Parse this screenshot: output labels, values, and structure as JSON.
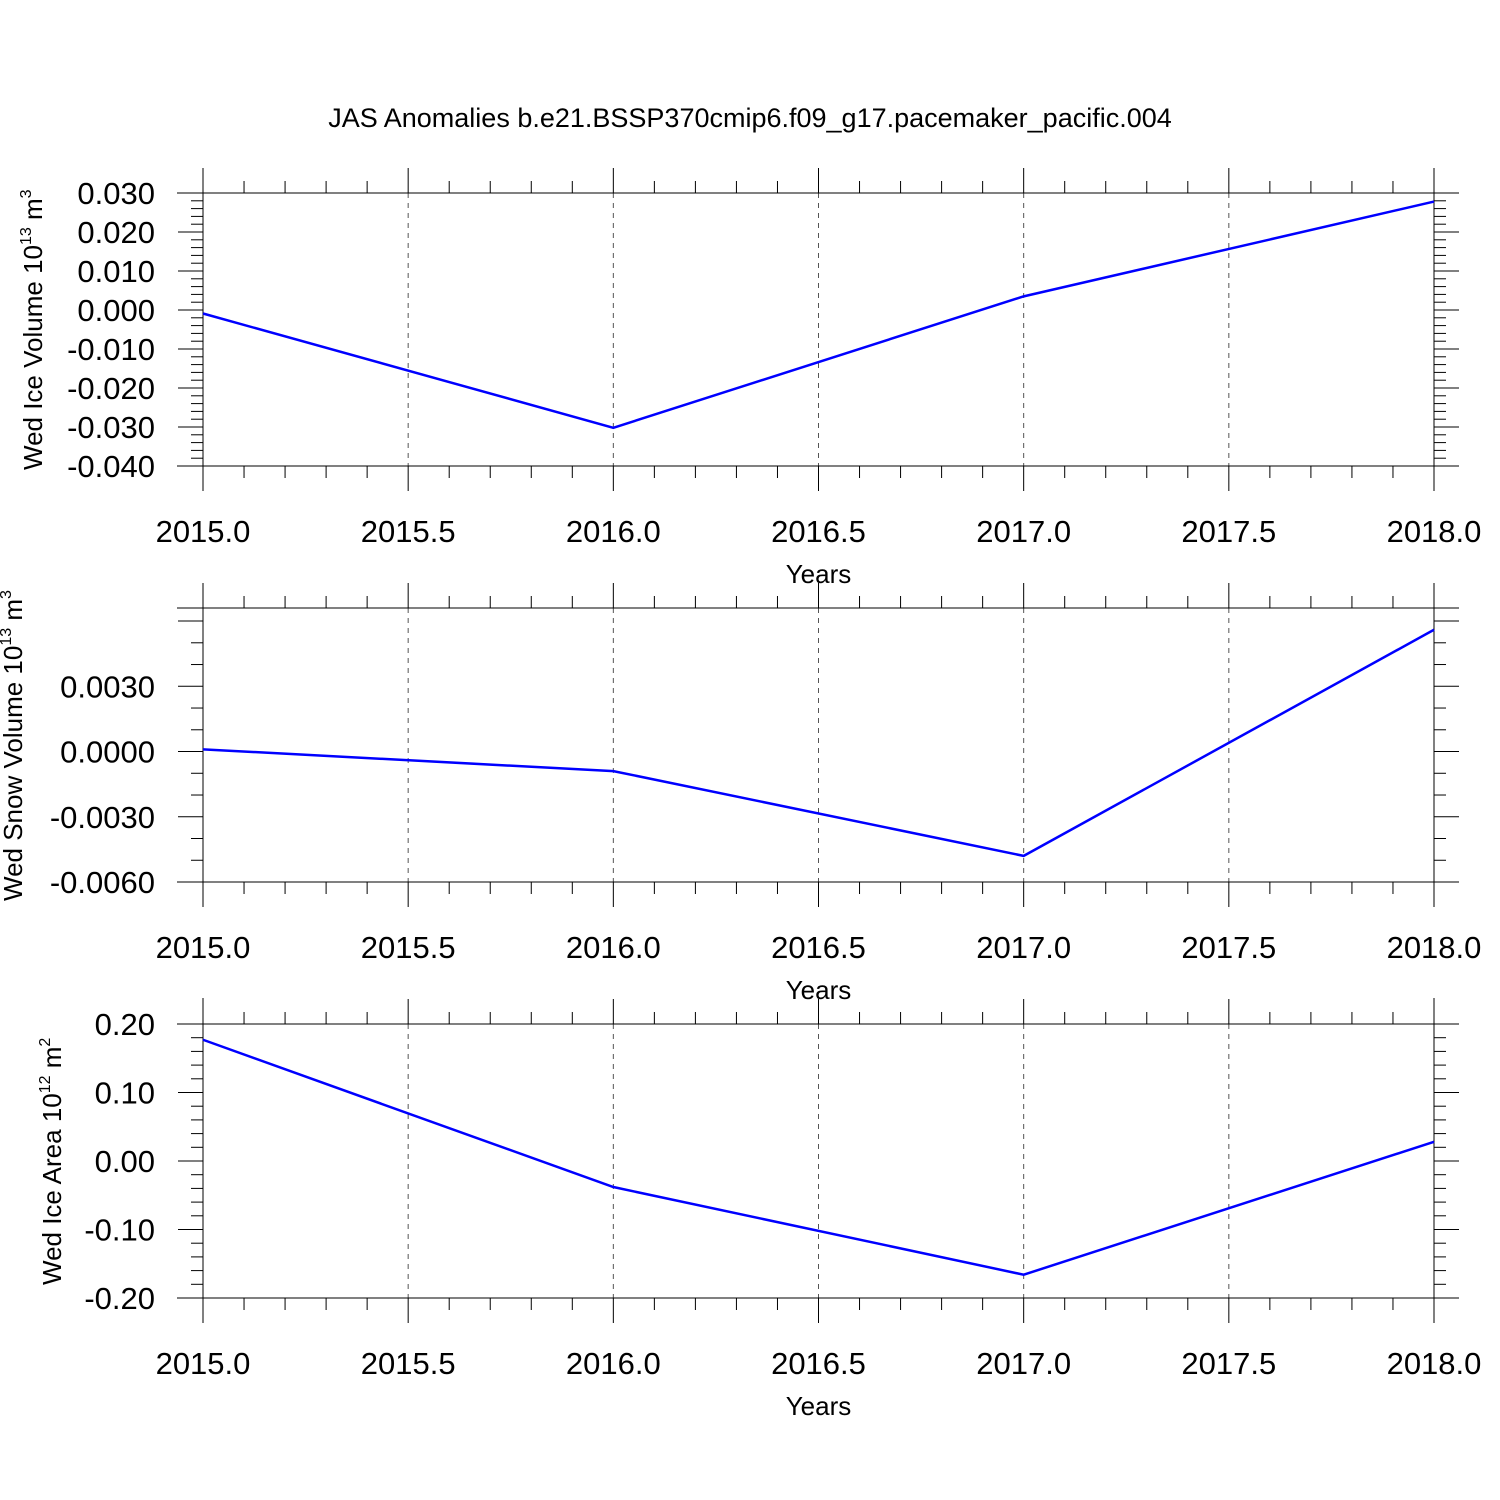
{
  "title": "JAS Anomalies b.e21.BSSP370cmip6.f09_g17.pacemaker_pacific.004",
  "line_color": "#0000ff",
  "chart_data": [
    {
      "type": "line",
      "ylabel_prefix": "Wed Ice Volume 10",
      "ylabel_exp": "13",
      "ylabel_unit": " m",
      "ylabel_unit_exp": "3",
      "xlabel": "Years",
      "xlim": [
        2015.0,
        2018.0
      ],
      "ylim": [
        -0.04,
        0.03
      ],
      "yticks": [
        0.03,
        0.02,
        0.01,
        0.0,
        -0.01,
        -0.02,
        -0.03,
        -0.04
      ],
      "ytick_labels": [
        "0.030",
        "0.020",
        "0.010",
        "0.000",
        "-0.010",
        "-0.020",
        "-0.030",
        "-0.040"
      ],
      "xticks": [
        2015.0,
        2015.5,
        2016.0,
        2016.5,
        2017.0,
        2017.5,
        2018.0
      ],
      "xtick_labels": [
        "2015.0",
        "2015.5",
        "2016.0",
        "2016.5",
        "2017.0",
        "2017.5",
        "2018.0"
      ],
      "x": [
        2015,
        2016,
        2017,
        2018
      ],
      "y": [
        -0.0009,
        -0.0302,
        0.0035,
        0.0278
      ]
    },
    {
      "type": "line",
      "ylabel_prefix": "Wed Snow Volume 10",
      "ylabel_exp": "13",
      "ylabel_unit": " m",
      "ylabel_unit_exp": "3",
      "xlabel": "Years",
      "xlim": [
        2015.0,
        2018.0
      ],
      "ylim": [
        -0.006,
        0.006
      ],
      "yticks": [
        0.003,
        0.0,
        -0.003,
        -0.006
      ],
      "ytick_labels": [
        "0.0030",
        "0.0000",
        "-0.0030",
        "-0.0060"
      ],
      "xticks": [
        2015.0,
        2015.5,
        2016.0,
        2016.5,
        2017.0,
        2017.5,
        2018.0
      ],
      "xtick_labels": [
        "2015.0",
        "2015.5",
        "2016.0",
        "2016.5",
        "2017.0",
        "2017.5",
        "2018.0"
      ],
      "x": [
        2015,
        2016,
        2017,
        2018
      ],
      "y": [
        0.0001,
        -0.0009,
        -0.0048,
        0.0056
      ]
    },
    {
      "type": "line",
      "ylabel_prefix": "Wed Ice Area 10",
      "ylabel_exp": "12",
      "ylabel_unit": " m",
      "ylabel_unit_exp": "2",
      "xlabel": "Years",
      "xlim": [
        2015.0,
        2018.0
      ],
      "ylim": [
        -0.2,
        0.2
      ],
      "yticks": [
        0.2,
        0.1,
        0.0,
        -0.1,
        -0.2
      ],
      "ytick_labels": [
        "0.20",
        "0.10",
        "0.00",
        "-0.10",
        "-0.20"
      ],
      "xticks": [
        2015.0,
        2015.5,
        2016.0,
        2016.5,
        2017.0,
        2017.5,
        2018.0
      ],
      "xtick_labels": [
        "2015.0",
        "2015.5",
        "2016.0",
        "2016.5",
        "2017.0",
        "2017.5",
        "2018.0"
      ],
      "x": [
        2015,
        2016,
        2017,
        2018
      ],
      "y": [
        0.177,
        -0.038,
        -0.166,
        0.028
      ]
    }
  ]
}
